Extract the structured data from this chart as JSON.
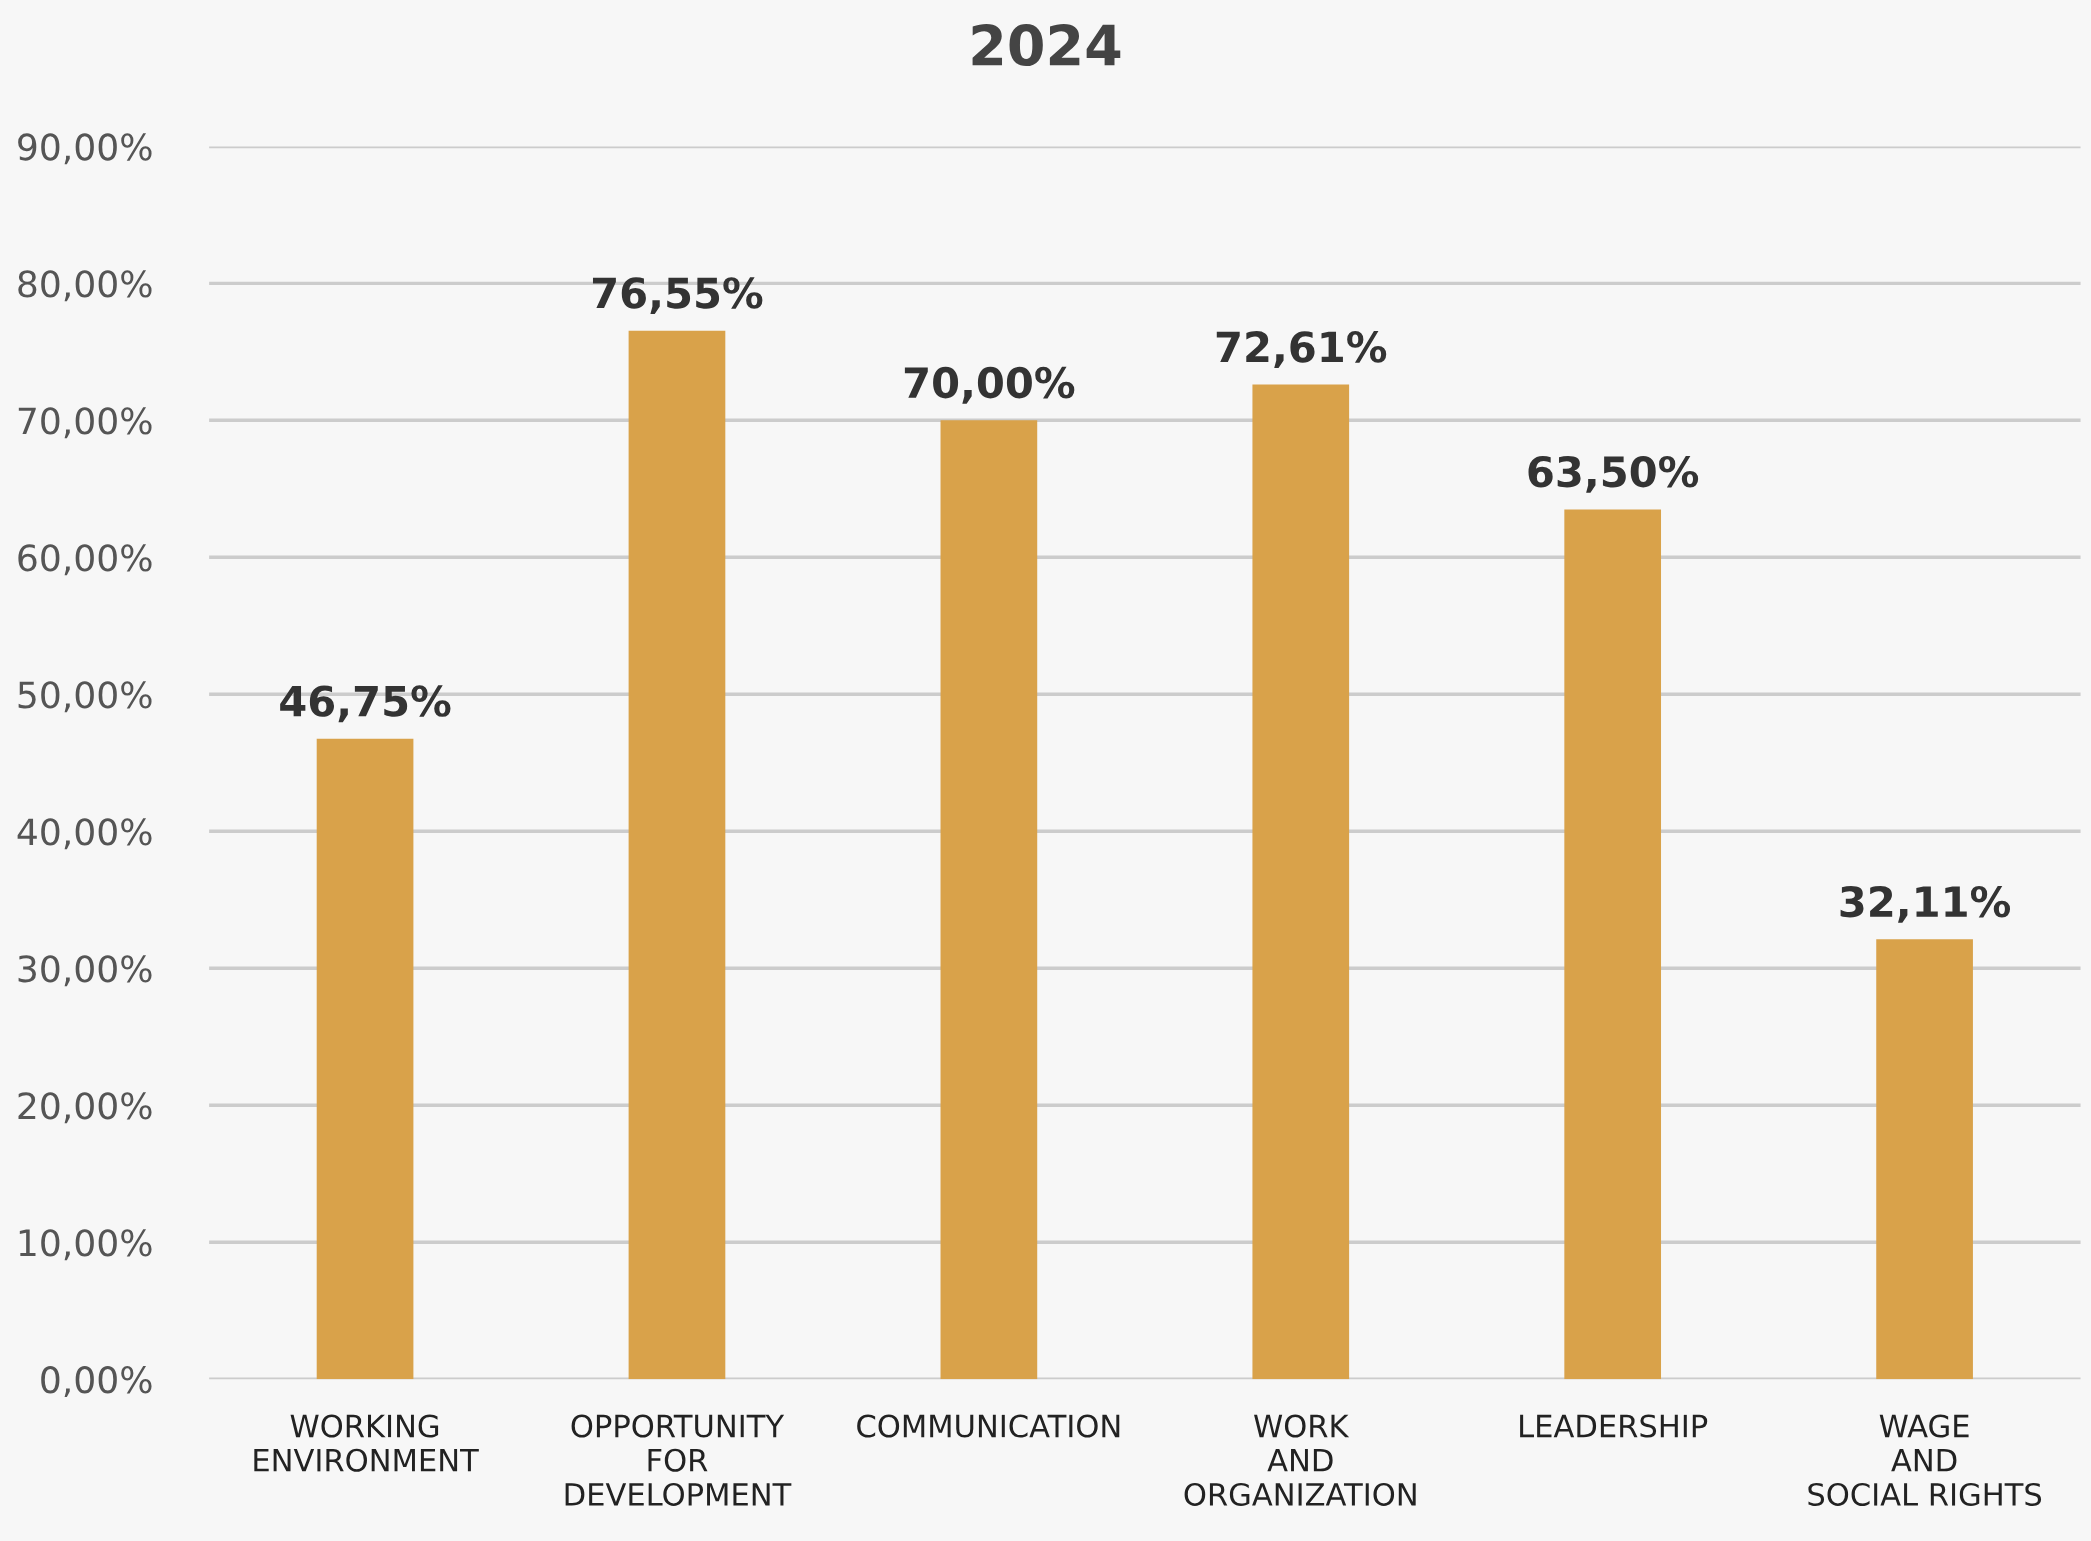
{
  "chart_data": {
    "type": "bar",
    "title": "2024",
    "categories": [
      "WORKING\nENVIRONMENT",
      "OPPORTUNITY\nFOR\nDEVELOPMENT",
      "COMMUNICATION",
      "WORK\nAND\nORGANIZATION",
      "LEADERSHIP",
      "WAGE\nAND\nSOCIAL RIGHTS"
    ],
    "values": [
      46.75,
      76.55,
      70.0,
      72.61,
      63.5,
      32.11
    ],
    "value_labels": [
      "46,75%",
      "76,55%",
      "70,00%",
      "72,61%",
      "63,50%",
      "32,11%"
    ],
    "color": "#d9a24a",
    "ylim": [
      0,
      90
    ],
    "yticks": [
      {
        "value": 0,
        "label": "0,00%"
      },
      {
        "value": 10,
        "label": "10,00%"
      },
      {
        "value": 20,
        "label": "20,00%"
      },
      {
        "value": 30,
        "label": "30,00%"
      },
      {
        "value": 40,
        "label": "40,00%"
      },
      {
        "value": 50,
        "label": "50,00%"
      },
      {
        "value": 60,
        "label": "60,00%"
      },
      {
        "value": 70,
        "label": "70,00%"
      },
      {
        "value": 80,
        "label": "80,00%"
      },
      {
        "value": 90,
        "label": "90,00%"
      }
    ],
    "grid": "y"
  }
}
